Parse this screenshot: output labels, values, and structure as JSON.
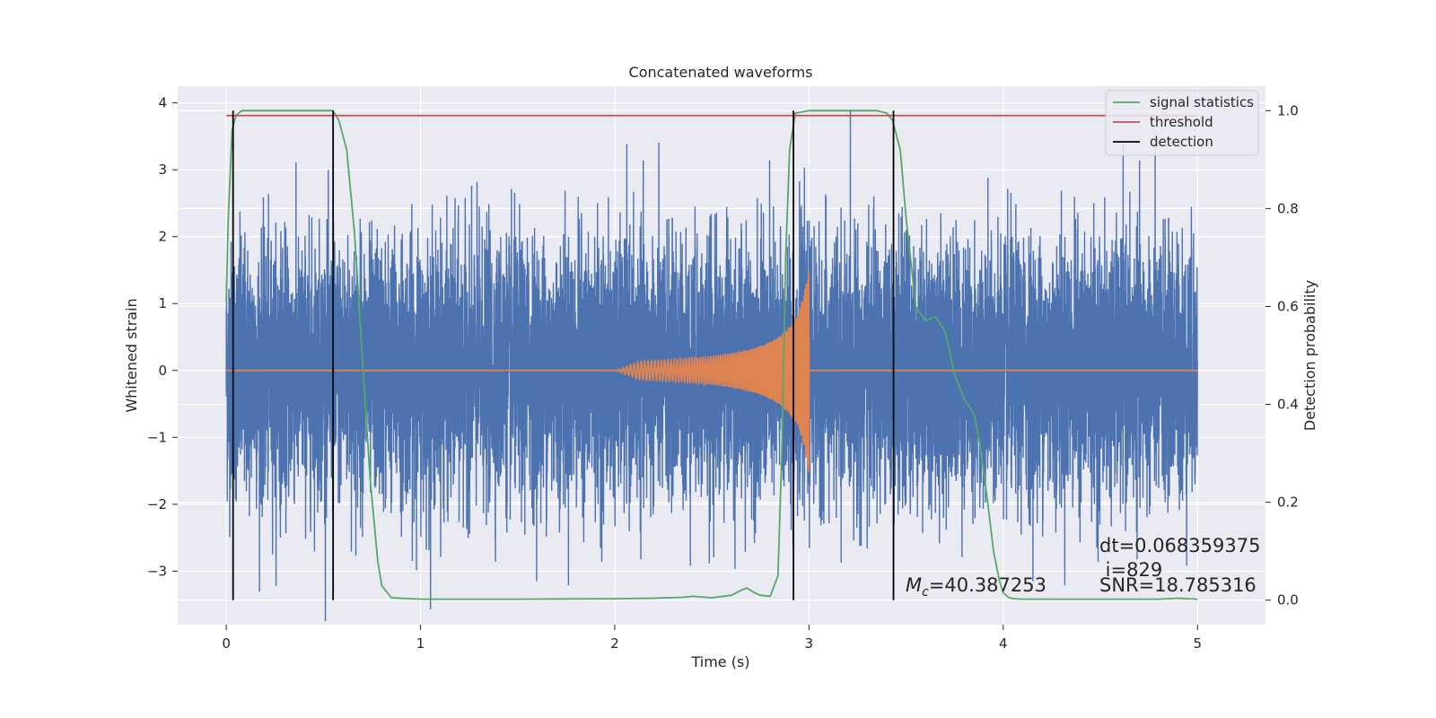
{
  "chart_data": {
    "type": "line",
    "title": "Concatenated waveforms",
    "xlabel": "Time (s)",
    "ylabel": "Whitened strain",
    "y2label": "Detection probability",
    "xlim": [
      -0.25,
      5.35
    ],
    "ylim": [
      -3.8,
      4.25
    ],
    "y2lim": [
      -0.05,
      1.05
    ],
    "x_ticks": [
      "0",
      "1",
      "2",
      "3",
      "4",
      "5"
    ],
    "y_ticks": [
      "−3",
      "−2",
      "−1",
      "0",
      "1",
      "2",
      "3",
      "4"
    ],
    "y2_ticks": [
      "0.0",
      "0.2",
      "0.4",
      "0.6",
      "0.8",
      "1.0"
    ],
    "grid": true,
    "legend_position": "top-right",
    "colors": {
      "background": "#EAEAF2",
      "strain": "#4C72B0",
      "template": "#DD8452",
      "signal_statistics": "#55A868",
      "threshold": "#C44E52",
      "detection": "#000000"
    },
    "series": [
      {
        "name": "",
        "description_key": "whitened strain noise",
        "x_range": [
          0,
          5
        ],
        "sample_rate_hz": 2048,
        "std": 0.95
      },
      {
        "name": "",
        "description_key": "injected chirp",
        "x_range": [
          2.0,
          3.0
        ],
        "max_amplitude": 1.6
      },
      {
        "name": "signal statistics",
        "axis": "right",
        "x": [
          0.0,
          0.01,
          0.03,
          0.05,
          0.08,
          0.15,
          0.3,
          0.45,
          0.5,
          0.55,
          0.58,
          0.62,
          0.66,
          0.7,
          0.74,
          0.78,
          0.8,
          0.85,
          1.0,
          1.5,
          2.0,
          2.2,
          2.35,
          2.4,
          2.5,
          2.6,
          2.65,
          2.68,
          2.72,
          2.75,
          2.8,
          2.84,
          2.86,
          2.88,
          2.9,
          2.93,
          3.0,
          3.2,
          3.35,
          3.4,
          3.43,
          3.47,
          3.5,
          3.55,
          3.6,
          3.65,
          3.7,
          3.75,
          3.8,
          3.85,
          3.88,
          3.92,
          3.95,
          3.98,
          4.0,
          4.03,
          4.06,
          4.1,
          4.5,
          4.8,
          4.9,
          5.0
        ],
        "y": [
          0.61,
          0.78,
          0.96,
          0.99,
          1.0,
          1.0,
          1.0,
          1.0,
          1.0,
          1.0,
          0.98,
          0.92,
          0.75,
          0.5,
          0.25,
          0.08,
          0.03,
          0.005,
          0.002,
          0.002,
          0.003,
          0.004,
          0.006,
          0.008,
          0.005,
          0.01,
          0.02,
          0.025,
          0.015,
          0.01,
          0.008,
          0.05,
          0.3,
          0.7,
          0.92,
          0.995,
          1.0,
          1.0,
          1.0,
          0.995,
          0.98,
          0.92,
          0.78,
          0.6,
          0.57,
          0.58,
          0.55,
          0.46,
          0.41,
          0.38,
          0.32,
          0.2,
          0.1,
          0.04,
          0.015,
          0.005,
          0.003,
          0.002,
          0.002,
          0.002,
          0.004,
          0.002
        ]
      },
      {
        "name": "threshold",
        "axis": "right",
        "x": [
          0.0,
          5.0
        ],
        "y": [
          0.99,
          0.99
        ]
      },
      {
        "name": "detection",
        "axis": "right",
        "x_positions": [
          0.035,
          0.55,
          2.92,
          3.435
        ],
        "y_range": [
          0.0,
          1.0
        ]
      }
    ],
    "annotations": [
      {
        "key": "mc",
        "symbol": "M",
        "subscript": "c",
        "text": "=40.387253"
      },
      {
        "key": "dt",
        "text": "dt=0.068359375"
      },
      {
        "key": "i",
        "text": " i=829"
      },
      {
        "key": "snr",
        "text": "SNR=18.785316"
      }
    ]
  }
}
